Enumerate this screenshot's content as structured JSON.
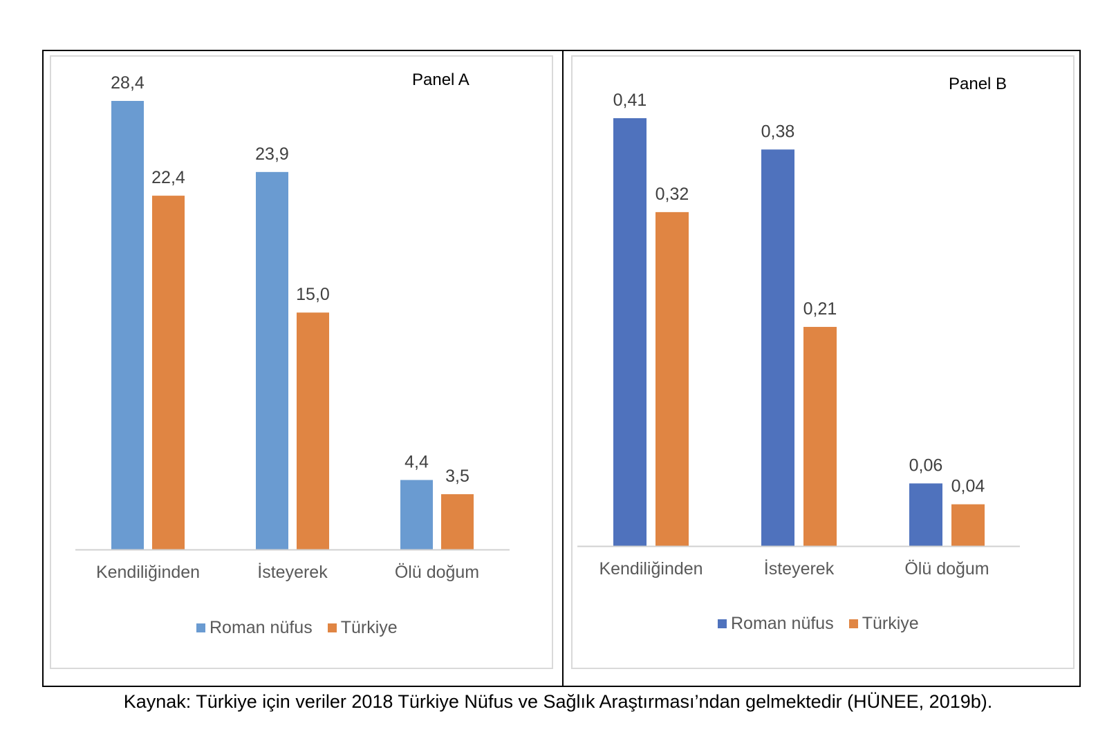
{
  "caption": "Kaynak: Türkiye için veriler 2018 Türkiye Nüfus ve Sağlık Araştırması’ndan gelmektedir (HÜNEE, 2019b).",
  "chart_data": [
    {
      "type": "bar",
      "panel_label": "Panel A",
      "categories": [
        "Kendiliğinden",
        "İsteyerek",
        "Ölü doğum"
      ],
      "series": [
        {
          "name": "Roman nüfus",
          "values": [
            28.4,
            23.9,
            4.4
          ],
          "labels": [
            "28,4",
            "23,9",
            "4,4"
          ],
          "color": "#6a9bd1"
        },
        {
          "name": "Türkiye",
          "values": [
            22.4,
            15.0,
            3.5
          ],
          "labels": [
            "22,4",
            "15,0",
            "3,5"
          ],
          "color": "#e08543"
        }
      ],
      "ylim": [
        0,
        28.4
      ],
      "legend": "bottom",
      "grid": false
    },
    {
      "type": "bar",
      "panel_label": "Panel B",
      "categories": [
        "Kendiliğinden",
        "İsteyerek",
        "Ölü doğum"
      ],
      "series": [
        {
          "name": "Roman nüfus",
          "values": [
            0.41,
            0.38,
            0.06
          ],
          "labels": [
            "0,41",
            "0,38",
            "0,06"
          ],
          "color": "#4f72bd"
        },
        {
          "name": "Türkiye",
          "values": [
            0.32,
            0.21,
            0.04
          ],
          "labels": [
            "0,32",
            "0,21",
            "0,04"
          ],
          "color": "#e08543"
        }
      ],
      "ylim": [
        0,
        0.41
      ],
      "legend": "bottom",
      "grid": false
    }
  ]
}
